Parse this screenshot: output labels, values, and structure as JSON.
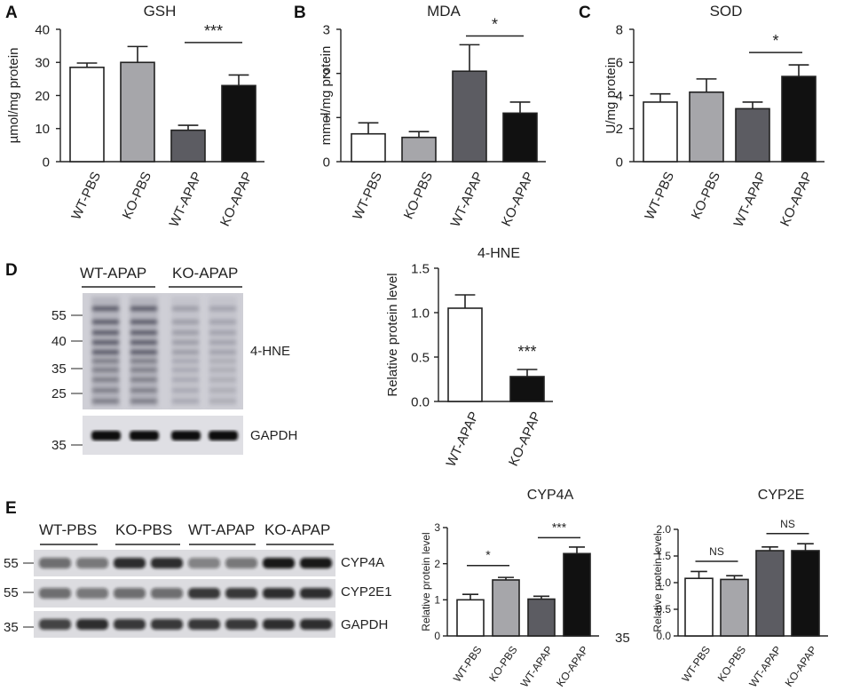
{
  "panels": {
    "A": "A",
    "B": "B",
    "C": "C",
    "D": "D",
    "E": "E"
  },
  "colors": {
    "white": "#ffffff",
    "light_gray": "#a6a6aa",
    "dark_gray": "#5c5c62",
    "black": "#111111"
  },
  "chart_data": [
    {
      "id": "gsh",
      "type": "bar",
      "title": "GSH",
      "ylabel": "µmol/mg protein",
      "categories": [
        "WT-PBS",
        "KO-PBS",
        "WT-APAP",
        "KO-APAP"
      ],
      "values": [
        28.5,
        30,
        9.5,
        23
      ],
      "errors": [
        1.3,
        4.8,
        1.5,
        3.2
      ],
      "fills": [
        "white",
        "light_gray",
        "dark_gray",
        "black"
      ],
      "ylim": [
        0,
        40
      ],
      "yticks": [
        "0",
        "10",
        "20",
        "30",
        "40"
      ],
      "significance": [
        {
          "from": 2,
          "to": 3,
          "label": "***",
          "y": 36
        }
      ]
    },
    {
      "id": "mda",
      "type": "bar",
      "title": "MDA",
      "ylabel": "mmol/mg protein",
      "categories": [
        "WT-PBS",
        "KO-PBS",
        "WT-APAP",
        "KO-APAP"
      ],
      "values": [
        0.63,
        0.55,
        2.05,
        1.1
      ],
      "errors": [
        0.25,
        0.13,
        0.6,
        0.25
      ],
      "fills": [
        "white",
        "light_gray",
        "dark_gray",
        "black"
      ],
      "ylim": [
        0,
        3
      ],
      "yticks": [
        "0",
        "1",
        "2",
        "3"
      ],
      "significance": [
        {
          "from": 2,
          "to": 3,
          "label": "*",
          "y": 2.85
        }
      ]
    },
    {
      "id": "sod",
      "type": "bar",
      "title": "SOD",
      "ylabel": "U/mg protein",
      "categories": [
        "WT-PBS",
        "KO-PBS",
        "WT-APAP",
        "KO-APAP"
      ],
      "values": [
        3.6,
        4.2,
        3.2,
        5.15
      ],
      "errors": [
        0.5,
        0.8,
        0.4,
        0.7
      ],
      "fills": [
        "white",
        "light_gray",
        "dark_gray",
        "black"
      ],
      "ylim": [
        0,
        8
      ],
      "yticks": [
        "0",
        "2",
        "4",
        "6",
        "8"
      ],
      "significance": [
        {
          "from": 2,
          "to": 3,
          "label": "*",
          "y": 6.6
        }
      ]
    },
    {
      "id": "hne",
      "type": "bar",
      "title": "4-HNE",
      "ylabel": "Relative protein level",
      "categories": [
        "WT-APAP",
        "KO-APAP"
      ],
      "values": [
        1.05,
        0.28
      ],
      "errors": [
        0.15,
        0.08
      ],
      "fills": [
        "white",
        "black"
      ],
      "ylim": [
        0,
        1.5
      ],
      "yticks": [
        "0.0",
        "0.5",
        "1.0",
        "1.5"
      ],
      "annotations": [
        {
          "bar": 1,
          "label": "***",
          "y": 0.5
        }
      ]
    },
    {
      "id": "cyp4a",
      "type": "bar",
      "title": "CYP4A",
      "ylabel": "Relative protein level",
      "categories": [
        "WT-PBS",
        "KO-PBS",
        "WT-APAP",
        "KO-APAP"
      ],
      "values": [
        1.0,
        1.55,
        1.02,
        2.28
      ],
      "errors": [
        0.15,
        0.07,
        0.08,
        0.18
      ],
      "fills": [
        "white",
        "light_gray",
        "dark_gray",
        "black"
      ],
      "ylim": [
        0,
        3
      ],
      "yticks": [
        "0",
        "1",
        "2",
        "3"
      ],
      "significance": [
        {
          "from": 0,
          "to": 1,
          "label": "*",
          "y": 1.95
        },
        {
          "from": 2,
          "to": 3,
          "label": "***",
          "y": 2.72
        }
      ]
    },
    {
      "id": "cyp2e",
      "type": "bar",
      "title": "CYP2E",
      "ylabel": "Relative protein level",
      "categories": [
        "WT-PBS",
        "KO-PBS",
        "WT-APAP",
        "KO-APAP"
      ],
      "values": [
        1.08,
        1.06,
        1.6,
        1.6
      ],
      "errors": [
        0.13,
        0.07,
        0.07,
        0.13
      ],
      "fills": [
        "white",
        "light_gray",
        "dark_gray",
        "black"
      ],
      "ylim": [
        0,
        2
      ],
      "yticks": [
        "0.0",
        "0.5",
        "1.0",
        "1.5",
        "2.0"
      ],
      "significance": [
        {
          "from": 0,
          "to": 1,
          "label": "NS",
          "y": 1.4
        },
        {
          "from": 2,
          "to": 3,
          "label": "NS",
          "y": 1.92
        }
      ]
    }
  ],
  "blot_d": {
    "groups": [
      "WT-APAP",
      "KO-APAP"
    ],
    "mw_markers": [
      "55",
      "40",
      "35",
      "25"
    ],
    "mw_gapdh": "35",
    "labels": [
      "4-HNE",
      "GAPDH"
    ]
  },
  "blot_e": {
    "groups": [
      "WT-PBS",
      "KO-PBS",
      "WT-APAP",
      "KO-APAP"
    ],
    "row_labels": [
      "CYP4A",
      "CYP2E1",
      "GAPDH"
    ],
    "mw_markers": [
      "55",
      "55",
      "35"
    ],
    "stray_label": "35",
    "band_intensity": {
      "CYP4A": [
        0.55,
        0.5,
        0.85,
        0.85,
        0.45,
        0.5,
        0.95,
        0.95
      ],
      "CYP2E1": [
        0.55,
        0.5,
        0.55,
        0.55,
        0.8,
        0.8,
        0.85,
        0.85
      ],
      "GAPDH": [
        0.75,
        0.85,
        0.8,
        0.8,
        0.8,
        0.8,
        0.85,
        0.85
      ]
    }
  }
}
